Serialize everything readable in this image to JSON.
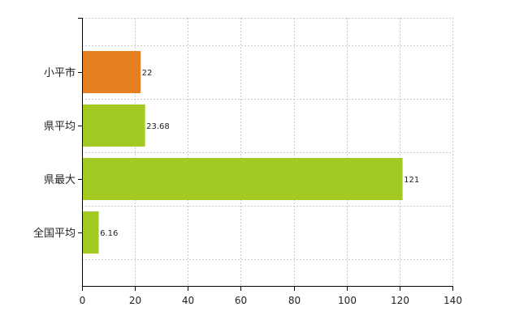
{
  "chart_data": {
    "type": "bar",
    "orientation": "horizontal",
    "categories": [
      "小平市",
      "県平均",
      "県最大",
      "全国平均"
    ],
    "values": [
      22,
      23.68,
      121,
      6.16
    ],
    "value_labels": [
      "22",
      "23.68",
      "121",
      "6.16"
    ],
    "bar_colors": [
      "#e67e22",
      "#a3c923",
      "#a3c923",
      "#a3c923"
    ],
    "xlim": [
      0,
      140
    ],
    "x_ticks": [
      0,
      20,
      40,
      60,
      80,
      100,
      120,
      140
    ],
    "x_tick_labels": [
      "0",
      "20",
      "40",
      "60",
      "80",
      "100",
      "120",
      "140"
    ],
    "title": "",
    "xlabel": "",
    "ylabel": "",
    "grid": true,
    "grid_style": "dotted",
    "legend": "none"
  }
}
